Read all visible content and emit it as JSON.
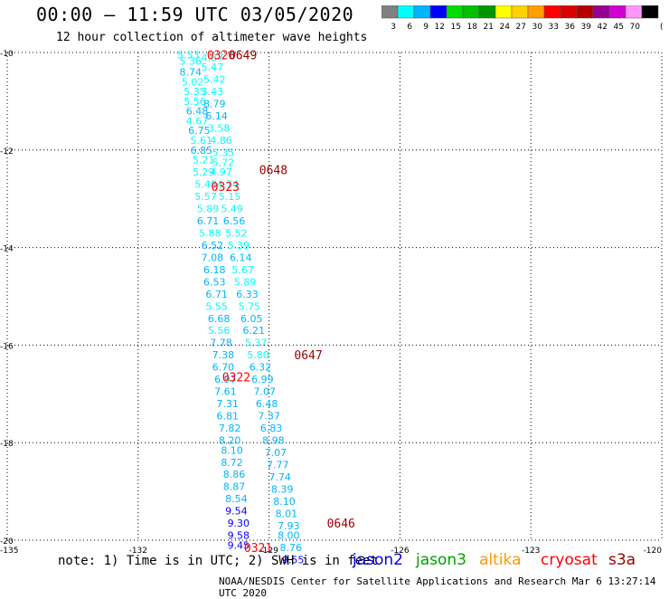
{
  "header": {
    "title": "00:00 – 11:59 UTC 03/05/2020",
    "subtitle": "12 hour collection of altimeter wave heights"
  },
  "legend": {
    "colors": [
      "#808080",
      "#00ffff",
      "#00b4ff",
      "#0000ff",
      "#00dc00",
      "#00c000",
      "#009600",
      "#ffff00",
      "#ffd200",
      "#ffa000",
      "#ff0000",
      "#dc0000",
      "#b40000",
      "#960096",
      "#d200d2",
      "#ff96ff",
      "#000000"
    ],
    "ticks": [
      "3",
      "6",
      "9",
      "12",
      "15",
      "18",
      "21",
      "24",
      "27",
      "30",
      "33",
      "36",
      "39",
      "42",
      "45",
      "70",
      "(ft)"
    ]
  },
  "axes": {
    "lat_labels": [
      "-10",
      "-12",
      "-14",
      "-16",
      "-18",
      "-20"
    ],
    "lat_values": [
      -10,
      -12,
      -14,
      -16,
      -18,
      -20
    ],
    "lon_labels": [
      "-135",
      "-132",
      "-129",
      "-126",
      "-123",
      "-120"
    ],
    "lon_values": [
      -135,
      -132,
      -129,
      -126,
      -123,
      -120
    ],
    "lon_range": [
      -135,
      -120
    ],
    "lat_range": [
      -10,
      -20
    ],
    "grid": "dotted"
  },
  "chart_data": {
    "type": "scatter",
    "tracks": [
      {
        "name": "track-left",
        "points": [
          {
            "lat": -10.05,
            "lon": -130.85,
            "swh": "5.53"
          },
          {
            "lat": -10.18,
            "lon": -130.8,
            "swh": "5.36"
          },
          {
            "lat": -10.4,
            "lon": -130.8,
            "swh": "8.74"
          },
          {
            "lat": -10.6,
            "lon": -130.75,
            "swh": "5.02"
          },
          {
            "lat": -10.8,
            "lon": -130.7,
            "swh": "5.35"
          },
          {
            "lat": -11.0,
            "lon": -130.7,
            "swh": "5.56"
          },
          {
            "lat": -11.2,
            "lon": -130.65,
            "swh": "6.48"
          },
          {
            "lat": -11.4,
            "lon": -130.65,
            "swh": "4.67"
          },
          {
            "lat": -11.6,
            "lon": -130.6,
            "swh": "6.75"
          },
          {
            "lat": -11.8,
            "lon": -130.55,
            "swh": "5.61"
          },
          {
            "lat": -12.0,
            "lon": -130.55,
            "swh": "6.85"
          },
          {
            "lat": -12.2,
            "lon": -130.5,
            "swh": "5.21"
          },
          {
            "lat": -12.45,
            "lon": -130.5,
            "swh": "5.29"
          },
          {
            "lat": -12.7,
            "lon": -130.45,
            "swh": "5.48"
          },
          {
            "lat": -12.95,
            "lon": -130.45,
            "swh": "5.57"
          },
          {
            "lat": -13.2,
            "lon": -130.4,
            "swh": "5.89"
          },
          {
            "lat": -13.45,
            "lon": -130.4,
            "swh": "6.71"
          },
          {
            "lat": -13.7,
            "lon": -130.35,
            "swh": "5.88"
          },
          {
            "lat": -13.95,
            "lon": -130.3,
            "swh": "6.52"
          },
          {
            "lat": -14.2,
            "lon": -130.3,
            "swh": "7.08"
          },
          {
            "lat": -14.45,
            "lon": -130.25,
            "swh": "6.18"
          },
          {
            "lat": -14.7,
            "lon": -130.25,
            "swh": "6.53"
          },
          {
            "lat": -14.95,
            "lon": -130.2,
            "swh": "6.71"
          },
          {
            "lat": -15.2,
            "lon": -130.2,
            "swh": "5.55"
          },
          {
            "lat": -15.45,
            "lon": -130.15,
            "swh": "6.68"
          },
          {
            "lat": -15.7,
            "lon": -130.15,
            "swh": "5.56"
          },
          {
            "lat": -15.95,
            "lon": -130.1,
            "swh": "7.78"
          },
          {
            "lat": -16.2,
            "lon": -130.05,
            "swh": "7.38"
          },
          {
            "lat": -16.45,
            "lon": -130.05,
            "swh": "6.70"
          },
          {
            "lat": -16.7,
            "lon": -130.0,
            "swh": "6.97"
          },
          {
            "lat": -16.95,
            "lon": -130.0,
            "swh": "7.61"
          },
          {
            "lat": -17.2,
            "lon": -129.95,
            "swh": "7.31"
          },
          {
            "lat": -17.45,
            "lon": -129.95,
            "swh": "6.81"
          },
          {
            "lat": -17.7,
            "lon": -129.9,
            "swh": "7.82"
          },
          {
            "lat": -17.95,
            "lon": -129.9,
            "swh": "8.20"
          },
          {
            "lat": -18.15,
            "lon": -129.85,
            "swh": "8.10"
          },
          {
            "lat": -18.4,
            "lon": -129.85,
            "swh": "8.72"
          },
          {
            "lat": -18.65,
            "lon": -129.8,
            "swh": "8.86"
          },
          {
            "lat": -18.9,
            "lon": -129.8,
            "swh": "8.87"
          },
          {
            "lat": -19.15,
            "lon": -129.75,
            "swh": "8.54"
          },
          {
            "lat": -19.4,
            "lon": -129.75,
            "swh": "9.54"
          },
          {
            "lat": -19.65,
            "lon": -129.7,
            "swh": "9.30"
          },
          {
            "lat": -19.9,
            "lon": -129.7,
            "swh": "9.58"
          },
          {
            "lat": -20.1,
            "lon": -129.7,
            "swh": "9.45"
          }
        ]
      },
      {
        "name": "track-right",
        "points": [
          {
            "lat": -10.1,
            "lon": -130.3,
            "swh": "4.87"
          },
          {
            "lat": -10.3,
            "lon": -130.3,
            "swh": "5.47"
          },
          {
            "lat": -10.55,
            "lon": -130.25,
            "swh": "5.42"
          },
          {
            "lat": -10.8,
            "lon": -130.3,
            "swh": "3.43"
          },
          {
            "lat": -11.05,
            "lon": -130.25,
            "swh": "8.79"
          },
          {
            "lat": -11.3,
            "lon": -130.2,
            "swh": "6.14"
          },
          {
            "lat": -11.55,
            "lon": -130.15,
            "swh": "3.58"
          },
          {
            "lat": -11.8,
            "lon": -130.1,
            "swh": "4.86"
          },
          {
            "lat": -12.05,
            "lon": -130.05,
            "swh": "5.35"
          },
          {
            "lat": -12.25,
            "lon": -130.05,
            "swh": "5.72"
          },
          {
            "lat": -12.45,
            "lon": -130.1,
            "swh": "4.97"
          },
          {
            "lat": -12.7,
            "lon": -129.95,
            "swh": "4.74"
          },
          {
            "lat": -12.95,
            "lon": -129.9,
            "swh": "5.15"
          },
          {
            "lat": -13.2,
            "lon": -129.85,
            "swh": "5.49"
          },
          {
            "lat": -13.45,
            "lon": -129.8,
            "swh": "6.56"
          },
          {
            "lat": -13.7,
            "lon": -129.75,
            "swh": "5.52"
          },
          {
            "lat": -13.95,
            "lon": -129.7,
            "swh": "5.39"
          },
          {
            "lat": -14.2,
            "lon": -129.65,
            "swh": "6.14"
          },
          {
            "lat": -14.45,
            "lon": -129.6,
            "swh": "5.67"
          },
          {
            "lat": -14.7,
            "lon": -129.55,
            "swh": "5.89"
          },
          {
            "lat": -14.95,
            "lon": -129.5,
            "swh": "6.33"
          },
          {
            "lat": -15.2,
            "lon": -129.45,
            "swh": "5.75"
          },
          {
            "lat": -15.45,
            "lon": -129.4,
            "swh": "6.05"
          },
          {
            "lat": -15.7,
            "lon": -129.35,
            "swh": "6.21"
          },
          {
            "lat": -15.95,
            "lon": -129.3,
            "swh": "5.37"
          },
          {
            "lat": -16.2,
            "lon": -129.25,
            "swh": "5.80"
          },
          {
            "lat": -16.45,
            "lon": -129.2,
            "swh": "6.32"
          },
          {
            "lat": -16.7,
            "lon": -129.15,
            "swh": "6.99"
          },
          {
            "lat": -16.95,
            "lon": -129.1,
            "swh": "7.07"
          },
          {
            "lat": -17.2,
            "lon": -129.05,
            "swh": "6.48"
          },
          {
            "lat": -17.45,
            "lon": -129.0,
            "swh": "7.37"
          },
          {
            "lat": -17.7,
            "lon": -128.95,
            "swh": "6.83"
          },
          {
            "lat": -17.95,
            "lon": -128.9,
            "swh": "8.98"
          },
          {
            "lat": -18.2,
            "lon": -128.85,
            "swh": "7.07"
          },
          {
            "lat": -18.45,
            "lon": -128.8,
            "swh": "7.77"
          },
          {
            "lat": -18.7,
            "lon": -128.75,
            "swh": "7.74"
          },
          {
            "lat": -18.95,
            "lon": -128.7,
            "swh": "8.39"
          },
          {
            "lat": -19.2,
            "lon": -128.65,
            "swh": "8.10"
          },
          {
            "lat": -19.45,
            "lon": -128.6,
            "swh": "8.01"
          },
          {
            "lat": -19.7,
            "lon": -128.55,
            "swh": "7.93"
          },
          {
            "lat": -19.9,
            "lon": -128.55,
            "swh": "8.00"
          },
          {
            "lat": -20.15,
            "lon": -128.5,
            "swh": "8.76"
          },
          {
            "lat": -20.4,
            "lon": -128.45,
            "swh": "9.55"
          }
        ]
      }
    ],
    "time_labels": [
      {
        "lat": -10.05,
        "lon": -130.1,
        "text": "0320",
        "satellite": "cryosat"
      },
      {
        "lat": -10.05,
        "lon": -129.6,
        "text": "0649",
        "satellite": "s3a"
      },
      {
        "lat": -12.4,
        "lon": -128.9,
        "text": "0648",
        "satellite": "s3a"
      },
      {
        "lat": -12.75,
        "lon": -130.0,
        "text": "0323",
        "satellite": "cryosat"
      },
      {
        "lat": -16.2,
        "lon": -128.1,
        "text": "0647",
        "satellite": "s3a"
      },
      {
        "lat": -16.65,
        "lon": -129.75,
        "text": "0322",
        "satellite": "cryosat"
      },
      {
        "lat": -19.65,
        "lon": -127.35,
        "text": "0646",
        "satellite": "s3a"
      },
      {
        "lat": -20.15,
        "lon": -129.25,
        "text": "0321",
        "satellite": "cryosat"
      }
    ]
  },
  "footer": {
    "note": "note: 1) Time is in UTC; 2) SWH is in feet",
    "credit": "NOAA/NESDIS Center for Satellite Applications and Research  Mar  6 13:27:14 UTC 2020",
    "satellites": [
      {
        "name": "jason2",
        "color": "#0000e0"
      },
      {
        "name": "jason3",
        "color": "#00a000"
      },
      {
        "name": "altika",
        "color": "#ff9900"
      },
      {
        "name": "cryosat",
        "color": "#ff0000"
      },
      {
        "name": "s3a",
        "color": "#990000"
      }
    ]
  }
}
